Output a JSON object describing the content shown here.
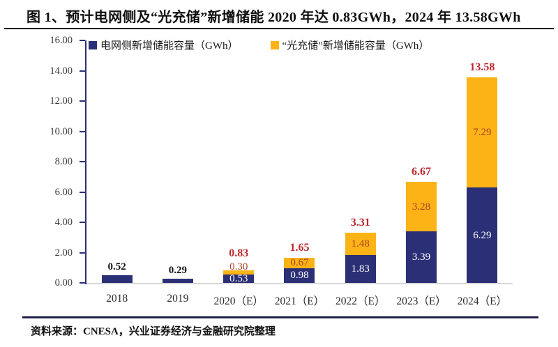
{
  "title": "图 1、预计电网侧及“光充储”新增储能 2020 年达 0.83GWh，2024 年 13.58GWh",
  "source": "资料来源：CNESA，兴业证券经济与金融研究院整理",
  "legend": [
    {
      "label": "电网侧新增储能容量（GWh）"
    },
    {
      "label": "“光充储”新增储能容量（GWh）"
    }
  ],
  "colors": {
    "grid_series": "#2B2F76",
    "pv_series": "#FBB316",
    "total_label": "#C0262E",
    "pv_label": "#A84324",
    "grid_label_inside": "#FFFFFF",
    "grid_label_above": "#111111",
    "axis": "#2B2F76",
    "baseline": "#D8D8D8",
    "tick_text": "#3D3D3D"
  },
  "chart_data": {
    "type": "bar",
    "stacked": true,
    "title": "预计电网侧及“光充储”新增储能 2020 年达 0.83GWh，2024 年 13.58GWh",
    "categories": [
      "2018",
      "2019",
      "2020（E）",
      "2021（E）",
      "2022（E）",
      "2023（E）",
      "2024（E）"
    ],
    "series": [
      {
        "name": "电网侧新增储能容量（GWh）",
        "values": [
          0.52,
          0.29,
          0.53,
          0.98,
          1.83,
          3.39,
          6.29
        ],
        "labels": [
          "0.52",
          "0.29",
          "0.53",
          "0.98",
          "1.83",
          "3.39",
          "6.29"
        ]
      },
      {
        "name": "“光充储”新增储能容量（GWh）",
        "values": [
          null,
          null,
          0.3,
          0.67,
          1.48,
          3.28,
          7.29
        ],
        "labels": [
          null,
          null,
          "0.30",
          "0.67",
          "1.48",
          "3.28",
          "7.29"
        ]
      }
    ],
    "totals": [
      0.52,
      0.29,
      0.83,
      1.65,
      3.31,
      6.67,
      13.58
    ],
    "total_labels": [
      null,
      null,
      "0.83",
      "1.65",
      "3.31",
      "6.67",
      "13.58"
    ],
    "xlabel": "",
    "ylabel": "",
    "ylim": [
      0,
      16
    ],
    "yticks": [
      0,
      2,
      4,
      6,
      8,
      10,
      12,
      14,
      16
    ],
    "ytick_labels": [
      "0.00",
      "2.00",
      "4.00",
      "6.00",
      "8.00",
      "10.00",
      "12.00",
      "14.00",
      "16.00"
    ],
    "legend_position": "top",
    "grid": false
  }
}
